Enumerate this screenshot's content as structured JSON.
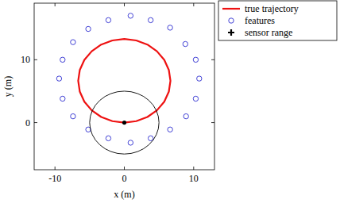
{
  "chart_data": {
    "type": "scatter",
    "xlabel": "x (m)",
    "ylabel": "y (m)",
    "xlim": [
      -13,
      13
    ],
    "ylim": [
      -7.5,
      19
    ],
    "xticks": [
      -10,
      0,
      10
    ],
    "yticks": [
      0,
      10
    ],
    "grid": false,
    "legend": "right",
    "series": [
      {
        "name": "true trajectory",
        "type": "line",
        "color": "#ee1111",
        "line_style": "solid",
        "x": [
          0,
          1.72,
          3.33,
          4.7,
          5.76,
          6.42,
          6.65,
          6.42,
          5.76,
          4.7,
          3.33,
          1.72,
          0,
          -1.72,
          -3.33,
          -4.7,
          -5.76,
          -6.42,
          -6.65,
          -6.42,
          -5.76,
          -4.7,
          -3.33,
          -1.72,
          0
        ],
        "y": [
          0,
          0.23,
          0.89,
          1.95,
          3.32,
          4.93,
          6.65,
          8.37,
          9.98,
          11.35,
          12.41,
          13.07,
          13.3,
          13.07,
          12.41,
          11.35,
          9.98,
          8.37,
          6.65,
          4.93,
          3.32,
          1.95,
          0.89,
          0.23,
          0
        ]
      },
      {
        "name": "features",
        "type": "scatter",
        "marker": "circle",
        "color": "#2f2fd0",
        "x": [
          -2.3,
          0.9,
          3.8,
          -5.2,
          6.6,
          -7.4,
          8.8,
          -8.9,
          10.3,
          -9.4,
          10.8,
          -8.9,
          10.3,
          -7.4,
          8.9,
          -5.2,
          6.6,
          -2.3,
          0.9,
          3.8
        ],
        "y": [
          16.3,
          17.0,
          16.3,
          14.9,
          15.1,
          12.8,
          12.5,
          10.0,
          10.0,
          7.0,
          7.0,
          3.8,
          3.8,
          1.0,
          1.0,
          -1.1,
          -1.1,
          -2.5,
          -3.2,
          -2.5
        ]
      },
      {
        "name": "sensor range",
        "type": "circle",
        "marker": "plus",
        "color": "#000000",
        "x": [
          0
        ],
        "y": [
          0
        ],
        "radius": [
          5
        ]
      }
    ]
  }
}
